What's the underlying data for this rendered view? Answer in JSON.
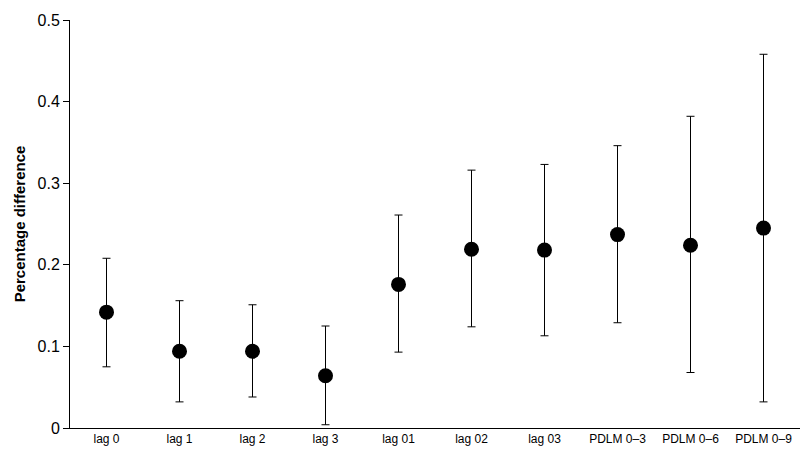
{
  "chart_data": {
    "type": "scatter",
    "y_label": "Percentage difference",
    "categories": [
      "lag 0",
      "lag 1",
      "lag 2",
      "lag 3",
      "lag 01",
      "lag 02",
      "lag 03",
      "PDLM 0–3",
      "PDLM 0–6",
      "PDLM 0–9"
    ],
    "values": [
      0.142,
      0.094,
      0.094,
      0.064,
      0.176,
      0.219,
      0.218,
      0.237,
      0.224,
      0.245
    ],
    "ci_lower": [
      0.075,
      0.032,
      0.038,
      0.004,
      0.093,
      0.124,
      0.113,
      0.129,
      0.068,
      0.032
    ],
    "ci_upper": [
      0.208,
      0.156,
      0.151,
      0.125,
      0.261,
      0.316,
      0.323,
      0.346,
      0.382,
      0.458
    ],
    "color": "#000000",
    "marker": "circle",
    "ylim": [
      0,
      0.5
    ],
    "yticks": [
      0,
      0.1,
      0.2,
      0.3,
      0.4,
      0.5
    ],
    "grid": false
  }
}
